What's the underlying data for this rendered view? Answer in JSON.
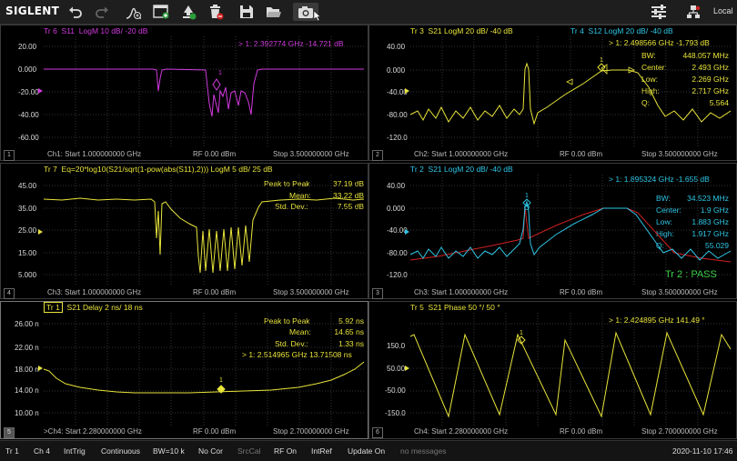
{
  "toolbar": {
    "logo": "SIGLENT",
    "local": "Local",
    "icons": [
      "undo-icon",
      "redo-icon",
      "marker-search-icon",
      "new-window-icon",
      "download-icon",
      "delete-icon",
      "save-icon",
      "open-folder-icon",
      "camera-icon",
      "settings-icon",
      "network-icon"
    ]
  },
  "panels": {
    "p1": {
      "number": "1",
      "trace": "Tr 6",
      "param": "S11",
      "format": "LogM 10 dB/ -20 dB",
      "marker_readout": ">  1:  2.392774 GHz      -14.721 dB",
      "yticks": [
        "20.00",
        "0.000",
        "-20.00",
        "-40.00",
        "-60.00"
      ],
      "footer_start": "Ch1: Start 1.000000000 GHz",
      "footer_power": "RF 0.00 dBm",
      "footer_stop": "Stop 3.500000000 GHz",
      "trace_color": "#d23ae0"
    },
    "p2": {
      "number": "2",
      "trace": "Tr 3",
      "param": "S21 LogM 20 dB/ -40 dB",
      "trace2": "Tr 4",
      "param2": "S12 LogM 20 dB/ -40 dB",
      "marker_readout": ">  1:  2.498566 GHz      -1.793 dB",
      "stats": [
        {
          "label": "BW:",
          "value": "448.057 MHz"
        },
        {
          "label": "Center:",
          "value": "2.493 GHz"
        },
        {
          "label": "Low:",
          "value": "2.269 GHz"
        },
        {
          "label": "High:",
          "value": "2.717 GHz"
        },
        {
          "label": "Q:",
          "value": "5.564"
        }
      ],
      "yticks": [
        "40.00",
        "0.000",
        "-40.00",
        "-80.00",
        "-120.0"
      ],
      "footer_start": "Ch2: Start 1.000000000 GHz",
      "footer_power": "RF 0.00 dBm",
      "footer_stop": "Stop 3.500000000 GHz"
    },
    "p3": {
      "number": "4",
      "trace": "Tr 7",
      "param": "Eq=20*log10(S21/sqrt(1-pow(abs(S11),2))) LogM 5 dB/ 25 dB",
      "stats": [
        {
          "label": "Peak to Peak",
          "value": "37.19 dB"
        },
        {
          "label": "Mean:",
          "value": "33.22 dB"
        },
        {
          "label": "Std. Dev.:",
          "value": "7.55 dB"
        }
      ],
      "yticks": [
        "45.00",
        "35.00",
        "25.00",
        "15.00",
        "5.000"
      ],
      "footer_start": "Ch3: Start 1.000000000 GHz",
      "footer_power": "RF 0.00 dBm",
      "footer_stop": "Stop 3.500000000 GHz"
    },
    "p4": {
      "number": "3",
      "trace": "Tr 2",
      "param": "S21 LogM 20 dB/ -40 dB",
      "marker_readout": ">  1:  1.895324 GHz      -1.655 dB",
      "stats": [
        {
          "label": "BW:",
          "value": "34.523 MHz"
        },
        {
          "label": "Center:",
          "value": "1.9 GHz"
        },
        {
          "label": "Low:",
          "value": "1.883 GHz"
        },
        {
          "label": "High:",
          "value": "1.917 GHz"
        },
        {
          "label": "Q:",
          "value": "55.029"
        }
      ],
      "limit_result": "Tr 2 : PASS",
      "yticks": [
        "40.00",
        "0.000",
        "-40.00",
        "-80.00",
        "-120.0"
      ],
      "footer_start": "Ch3: Start 1.000000000 GHz",
      "footer_power": "RF 0.00 dBm",
      "footer_stop": "Stop 3.500000000 GHz"
    },
    "p5": {
      "number": "5",
      "trace": "Tr 1",
      "param": "S21 Delay 2 ns/ 18 ns",
      "stats": [
        {
          "label": "Peak to Peak",
          "value": "5.92 ns"
        },
        {
          "label": "Mean:",
          "value": "14.65 ns"
        },
        {
          "label": "Std. Dev.:",
          "value": "1.33 ns"
        }
      ],
      "marker_readout": ">  1:  2.514965 GHz      13.71508 ns",
      "yticks": [
        "26.00 n",
        "22.00 n",
        "18.00 n",
        "14.00 n",
        "10.00 n"
      ],
      "footer_start": ">Ch4: Start 2.280000000 GHz",
      "footer_power": "RF 0.00 dBm",
      "footer_stop": "Stop 2.700000000 GHz"
    },
    "p6": {
      "number": "6",
      "trace": "Tr 5",
      "param": "S21 Phase 50 °/ 50 °",
      "marker_readout": ">  1:  2.424895 GHz      141.49 °",
      "yticks": [
        "150.0",
        "50.00",
        "-50.00",
        "-150.0"
      ],
      "footer_start": "Ch4: Start 2.280000000 GHz",
      "footer_power": "RF 0.00 dBm",
      "footer_stop": "Stop 2.700000000 GHz"
    }
  },
  "statusbar": {
    "items": [
      "Tr 1",
      "Ch 4",
      "IntTrig",
      "Continuous",
      "BW=10 k",
      "No Cor",
      "SrcCal",
      "RF On",
      "IntRef",
      "Update On",
      "no messages"
    ],
    "datetime": "2020-11-10 17:46"
  },
  "colors": {
    "yellow": "#e8e43a",
    "magenta": "#d23ae0",
    "cyan": "#2ec7e6",
    "red": "#d02020",
    "pass": "#3bd24a"
  }
}
